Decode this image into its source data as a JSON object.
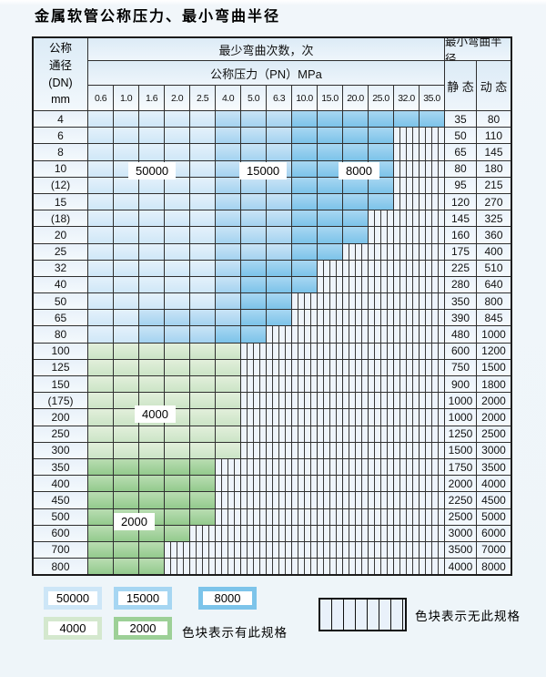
{
  "title": "金属软管公称压力、最小弯曲半径",
  "header": {
    "dn_lines": [
      "公称",
      "通径",
      "(DN)",
      "mm"
    ],
    "cycles": "最少弯曲次数，次",
    "pressure": "公称压力（PN）MPa",
    "radius": "最小弯曲半径",
    "static": "静 态",
    "dynamic": "动 态"
  },
  "chart_data": {
    "type": "table",
    "title": "金属软管公称压力、最小弯曲半径",
    "columns": [
      "0.6",
      "1.0",
      "1.6",
      "2.0",
      "2.5",
      "4.0",
      "5.0",
      "6.3",
      "10.0",
      "15.0",
      "20.0",
      "25.0",
      "32.0",
      "35.0"
    ],
    "zone_cycles": {
      "l": 50000,
      "m": 15000,
      "d": 8000,
      "g": 4000,
      "G": 2000,
      "h": "无此规格"
    },
    "overlay_labels": {
      "l": "50000",
      "m": "15000",
      "d": "8000",
      "g": "4000",
      "G": "2000"
    },
    "rows": [
      {
        "dn": "4",
        "zones": "lllllmmmdddddd",
        "static": "35",
        "dynamic": "80"
      },
      {
        "dn": "6",
        "zones": "lllllmmmddddhh",
        "static": "50",
        "dynamic": "110"
      },
      {
        "dn": "8",
        "zones": "lllllmmmddddhh",
        "static": "65",
        "dynamic": "145"
      },
      {
        "dn": "10",
        "zones": "lllllmmmddddhh",
        "static": "80",
        "dynamic": "180"
      },
      {
        "dn": "(12)",
        "zones": "lllllmmmddddhh",
        "static": "95",
        "dynamic": "215"
      },
      {
        "dn": "15",
        "zones": "lllllmmmddddhh",
        "static": "120",
        "dynamic": "270"
      },
      {
        "dn": "(18)",
        "zones": "lllllmmmdddhhh",
        "static": "145",
        "dynamic": "325"
      },
      {
        "dn": "20",
        "zones": "lllllmmmdddhhh",
        "static": "160",
        "dynamic": "360"
      },
      {
        "dn": "25",
        "zones": "lllllmmmddhhhh",
        "static": "175",
        "dynamic": "400"
      },
      {
        "dn": "32",
        "zones": "lllllmdddhhhhh",
        "static": "225",
        "dynamic": "510"
      },
      {
        "dn": "40",
        "zones": "lllllmdddhhhhh",
        "static": "280",
        "dynamic": "640"
      },
      {
        "dn": "50",
        "zones": "lllllmddhhhhhh",
        "static": "350",
        "dynamic": "800"
      },
      {
        "dn": "65",
        "zones": "llmmmmddhhhhhh",
        "static": "390",
        "dynamic": "845"
      },
      {
        "dn": "80",
        "zones": "llmmmddhhhhhhh",
        "static": "480",
        "dynamic": "1000"
      },
      {
        "dn": "100",
        "zones": "gggggghhhhhhhh",
        "static": "600",
        "dynamic": "1200"
      },
      {
        "dn": "125",
        "zones": "gggggghhhhhhhh",
        "static": "750",
        "dynamic": "1500"
      },
      {
        "dn": "150",
        "zones": "gggggghhhhhhhh",
        "static": "900",
        "dynamic": "1800"
      },
      {
        "dn": "(175)",
        "zones": "gggggghhhhhhhh",
        "static": "1000",
        "dynamic": "2000"
      },
      {
        "dn": "200",
        "zones": "gggggghhhhhhhh",
        "static": "1000",
        "dynamic": "2000"
      },
      {
        "dn": "250",
        "zones": "gggggghhhhhhhh",
        "static": "1250",
        "dynamic": "2500"
      },
      {
        "dn": "300",
        "zones": "gggggghhhhhhhh",
        "static": "1500",
        "dynamic": "3000"
      },
      {
        "dn": "350",
        "zones": "GGGGGhhhhhhhhh",
        "static": "1750",
        "dynamic": "3500"
      },
      {
        "dn": "400",
        "zones": "GGGGGhhhhhhhhh",
        "static": "2000",
        "dynamic": "4000"
      },
      {
        "dn": "450",
        "zones": "GGGGGhhhhhhhhh",
        "static": "2250",
        "dynamic": "4500"
      },
      {
        "dn": "500",
        "zones": "GGGGGhhhhhhhhh",
        "static": "2500",
        "dynamic": "5000"
      },
      {
        "dn": "600",
        "zones": "GGGGhhhhhhhhhh",
        "static": "3000",
        "dynamic": "6000"
      },
      {
        "dn": "700",
        "zones": "GGGhhhhhhhhhhh",
        "static": "3500",
        "dynamic": "7000"
      },
      {
        "dn": "800",
        "zones": "GGGhhhhhhhhhhh",
        "static": "4000",
        "dynamic": "8000"
      }
    ]
  },
  "legend": {
    "items": [
      {
        "value": "50000",
        "color": "#cde6f7"
      },
      {
        "value": "15000",
        "color": "#a6d6f2"
      },
      {
        "value": "8000",
        "color": "#7dc4ea"
      },
      {
        "value": "4000",
        "color": "#d4e8ce"
      },
      {
        "value": "2000",
        "color": "#9dd097"
      }
    ],
    "has_spec_text": "色块表示有此规格",
    "no_spec_text": "色块表示无此规格"
  },
  "colors": {
    "zone_50000": "#d2e8f7",
    "zone_15000": "#a4d3f0",
    "zone_8000": "#7cc3e9",
    "zone_4000": "#cbe4c6",
    "zone_2000": "#93ca8d",
    "grid_line": "#2f2f2f",
    "page_bg": "#eef5f9"
  }
}
